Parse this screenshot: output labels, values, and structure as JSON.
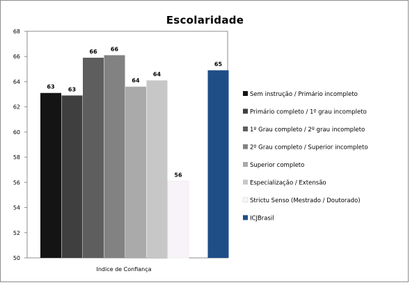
{
  "chart_data": {
    "type": "bar",
    "title": "Escolaridade",
    "xlabel": "Indice de Confiança",
    "ylabel": "",
    "ylim": [
      50,
      68
    ],
    "yticks": [
      50,
      52,
      54,
      56,
      58,
      60,
      62,
      64,
      66,
      68
    ],
    "grid": false,
    "legend_position": "right",
    "categories": [
      "Indice de Confiança"
    ],
    "series": [
      {
        "name": "Sem instrução / Primário incompleto",
        "value": 63.1,
        "label": "63",
        "color": "#141414"
      },
      {
        "name": "Primário completo / 1º grau incompleto",
        "value": 62.9,
        "label": "63",
        "color": "#3f3f3f"
      },
      {
        "name": "1º Grau completo / 2º grau incompleto",
        "value": 65.9,
        "label": "66",
        "color": "#5e5e5e"
      },
      {
        "name": "2º Grau completo / Superior incompleto",
        "value": 66.1,
        "label": "66",
        "color": "#828282"
      },
      {
        "name": "Superior completo",
        "value": 63.6,
        "label": "64",
        "color": "#aaaaaa"
      },
      {
        "name": "Especialização / Extensão",
        "value": 64.1,
        "label": "64",
        "color": "#c7c7c7"
      },
      {
        "name": "Strictu Senso (Mestrado / Doutorado)",
        "value": 56.1,
        "label": "56",
        "color": "#f7f3f8"
      },
      {
        "name": "ICJBrasil",
        "value": 64.9,
        "label": "65",
        "color": "#1f4e87"
      }
    ]
  }
}
